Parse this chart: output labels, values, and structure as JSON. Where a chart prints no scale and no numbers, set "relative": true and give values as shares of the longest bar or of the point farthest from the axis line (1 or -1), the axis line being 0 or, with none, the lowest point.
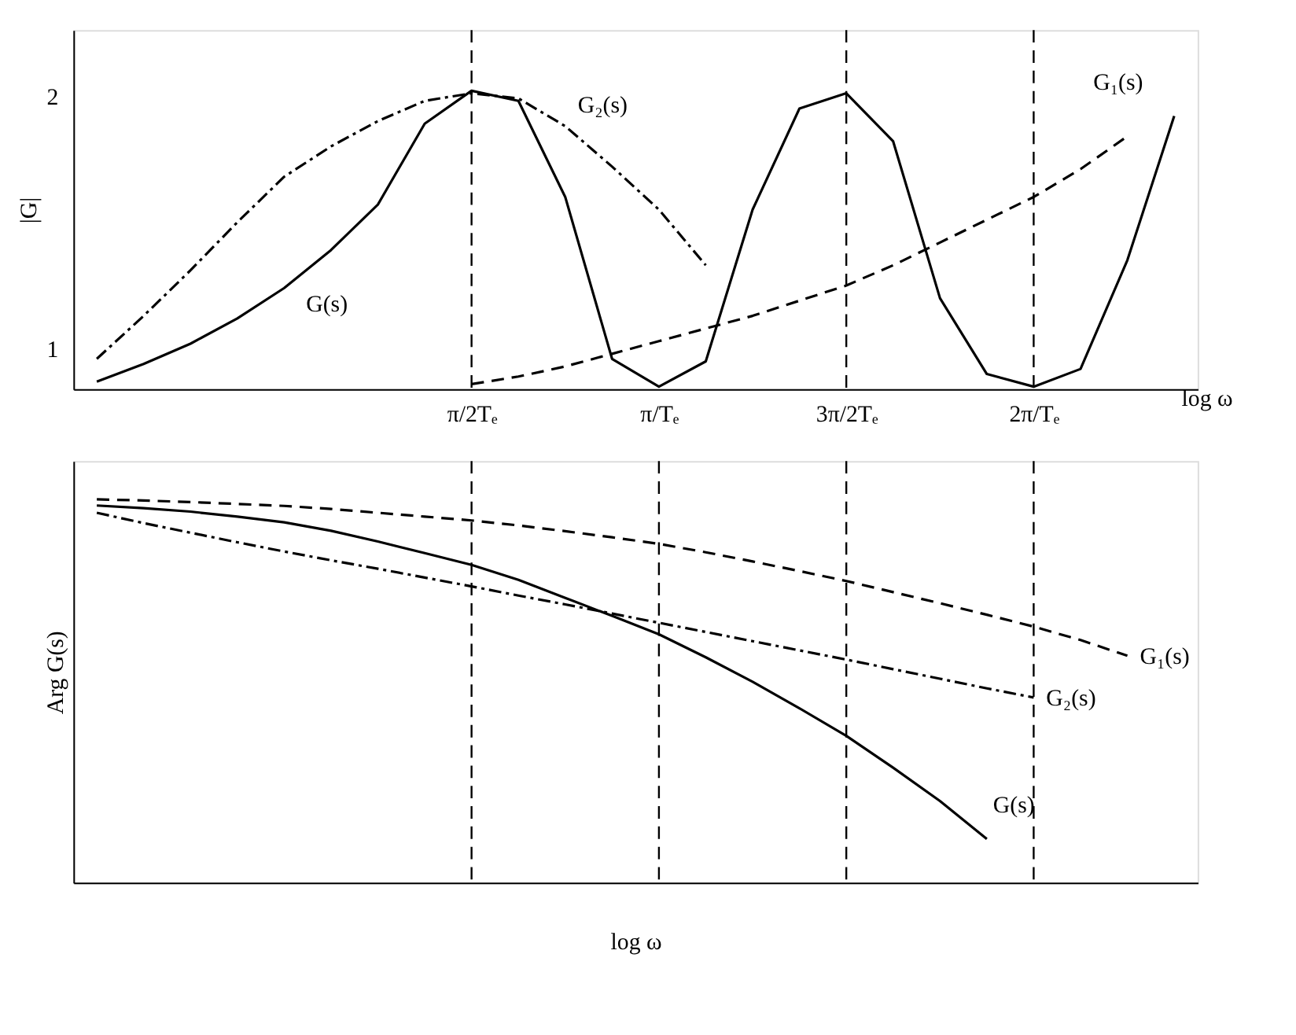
{
  "chart_data": [
    {
      "type": "line",
      "ylabel": "|G|",
      "xlabel": "log ω",
      "ylim": [
        0.84,
        2.26
      ],
      "yticks": [
        1,
        2
      ],
      "categories": [
        null,
        null,
        null,
        null,
        null,
        null,
        null,
        null,
        "π/2Tₑ",
        null,
        null,
        null,
        "π/Tₑ",
        null,
        null,
        null,
        "3π/2Tₑ",
        null,
        null,
        null,
        "2π/Tₑ",
        null,
        null,
        null
      ],
      "grid": false,
      "legend": false,
      "marker": "none",
      "series": [
        {
          "name": "G(s)",
          "color": "#000000",
          "line_style": "solid",
          "values": [
            0.87,
            0.94,
            1.02,
            1.12,
            1.24,
            1.39,
            1.57,
            1.89,
            2.02,
            1.98,
            1.6,
            0.96,
            0.85,
            0.95,
            1.55,
            1.95,
            2.01,
            1.82,
            1.2,
            0.9,
            0.85,
            0.92,
            1.35,
            1.92
          ]
        },
        {
          "name": "G₂(s)",
          "color": "#000000",
          "line_style": "dashdot",
          "values": [
            0.96,
            1.13,
            1.31,
            1.5,
            1.68,
            1.8,
            1.9,
            1.98,
            2.01,
            1.99,
            1.88,
            1.72,
            1.55,
            1.33,
            null,
            null,
            null,
            null,
            null,
            null,
            null,
            null,
            null,
            null
          ]
        },
        {
          "name": "G₁(s)",
          "color": "#000000",
          "line_style": "dashed",
          "values": [
            null,
            null,
            null,
            null,
            null,
            null,
            null,
            null,
            0.86,
            0.89,
            0.93,
            0.98,
            1.03,
            1.08,
            1.13,
            1.19,
            1.25,
            1.33,
            1.42,
            1.51,
            1.6,
            1.71,
            1.84,
            null
          ]
        }
      ],
      "ref_lines": [
        {
          "axis": "x",
          "value": "π/2Tₑ",
          "color": "#000000",
          "line_style": "dashed"
        },
        {
          "axis": "x",
          "value": "3π/2Tₑ",
          "color": "#000000",
          "line_style": "dashed"
        },
        {
          "axis": "x",
          "value": "2π/Tₑ",
          "color": "#000000",
          "line_style": "dashed"
        }
      ]
    },
    {
      "type": "line",
      "ylabel": "Arg G(s)",
      "xlabel": "log ω",
      "relative": true,
      "tick_labels": false,
      "categories": [
        null,
        null,
        null,
        null,
        null,
        null,
        null,
        null,
        "π/2Tₑ",
        null,
        null,
        null,
        "π/Tₑ",
        null,
        null,
        null,
        "3π/2Tₑ",
        null,
        null,
        null,
        "2π/Tₑ",
        null,
        null,
        null
      ],
      "grid": false,
      "legend": false,
      "marker": "none",
      "series": [
        {
          "name": "G₁(s)",
          "color": "#000000",
          "line_style": "dashed",
          "values": [
            1.0,
            0.997,
            0.993,
            0.988,
            0.983,
            0.975,
            0.965,
            0.955,
            0.945,
            0.932,
            0.917,
            0.901,
            0.884,
            0.862,
            0.838,
            0.813,
            0.787,
            0.758,
            0.729,
            0.699,
            0.668,
            0.633,
            0.592,
            null
          ]
        },
        {
          "name": "G₂(s)",
          "color": "#000000",
          "line_style": "dashdot",
          "values": [
            0.965,
            0.938,
            0.913,
            0.888,
            0.864,
            0.841,
            0.819,
            0.796,
            0.773,
            0.749,
            0.726,
            0.702,
            0.678,
            0.654,
            0.63,
            0.606,
            0.582,
            0.557,
            0.532,
            0.507,
            0.483,
            null,
            null,
            null
          ]
        },
        {
          "name": "G(s)",
          "color": "#000000",
          "line_style": "solid",
          "values": [
            0.984,
            0.977,
            0.968,
            0.955,
            0.94,
            0.918,
            0.89,
            0.86,
            0.829,
            0.79,
            0.743,
            0.696,
            0.648,
            0.588,
            0.524,
            0.455,
            0.383,
            0.3,
            0.213,
            0.114,
            null,
            null,
            null,
            null
          ]
        }
      ],
      "ref_lines": [
        {
          "axis": "x",
          "value": "π/2Tₑ",
          "color": "#000000",
          "line_style": "dashed"
        },
        {
          "axis": "x",
          "value": "π/Tₑ",
          "color": "#000000",
          "line_style": "dashed"
        },
        {
          "axis": "x",
          "value": "3π/2Tₑ",
          "color": "#000000",
          "line_style": "dashed"
        },
        {
          "axis": "x",
          "value": "2π/Tₑ",
          "color": "#000000",
          "line_style": "dashed"
        }
      ]
    }
  ]
}
